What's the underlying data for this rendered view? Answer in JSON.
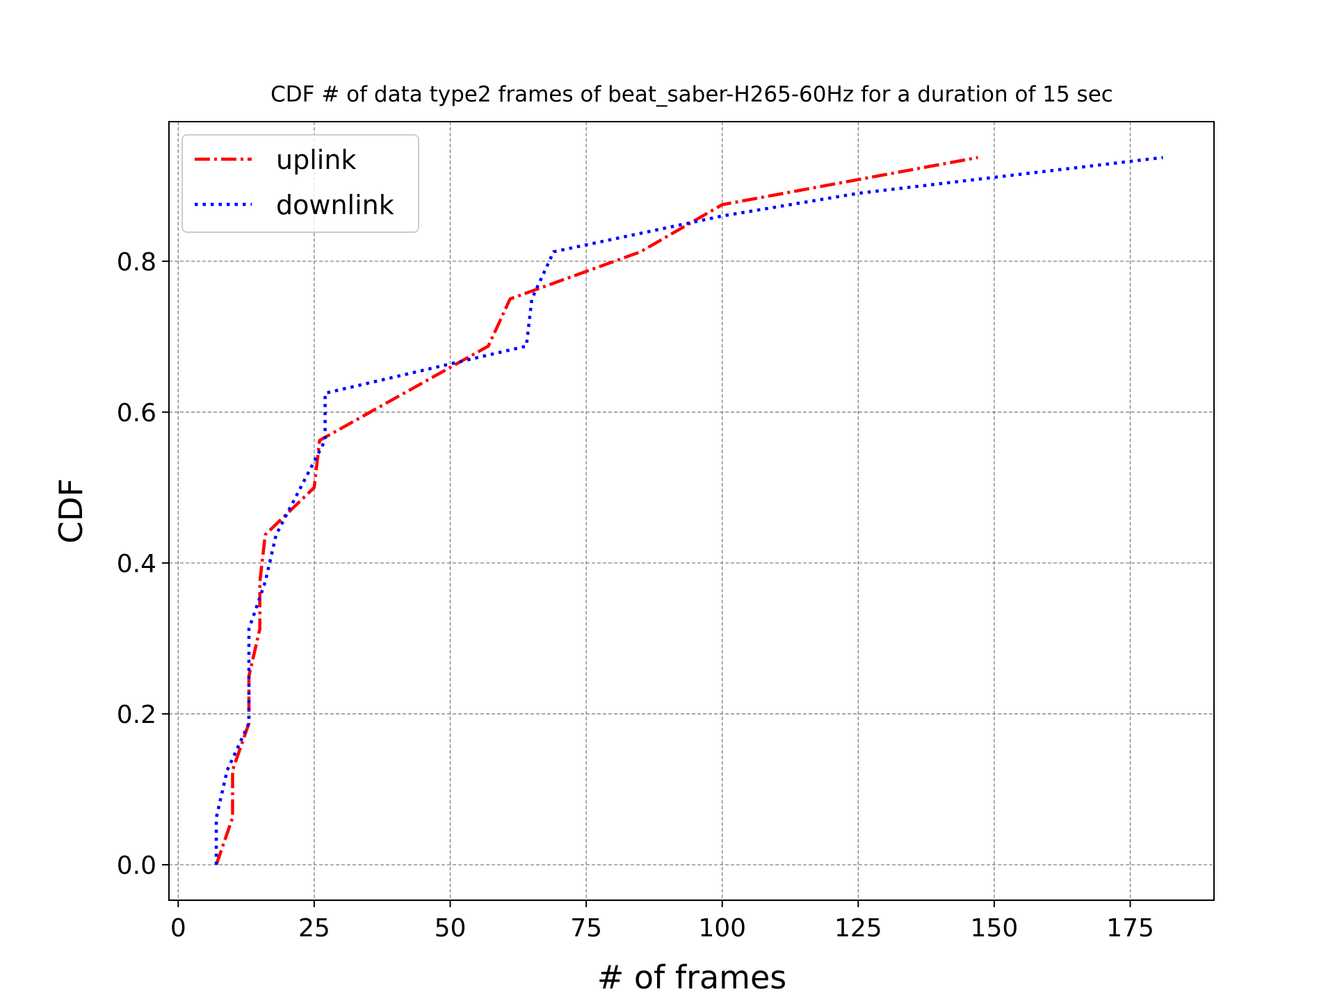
{
  "chart_data": {
    "type": "line",
    "title": "CDF # of data type2 frames of beat_saber-H265-60Hz for a duration of 15 sec",
    "xlabel": "# of frames",
    "ylabel": "CDF",
    "xlim": [
      -1.7,
      190.4
    ],
    "ylim": [
      -0.047,
      0.985
    ],
    "xticks": [
      0,
      25,
      50,
      75,
      100,
      125,
      150,
      175
    ],
    "xtick_labels": [
      "0",
      "25",
      "50",
      "75",
      "100",
      "125",
      "150",
      "175"
    ],
    "yticks": [
      0.0,
      0.2,
      0.4,
      0.6,
      0.8
    ],
    "ytick_labels": [
      "0.0",
      "0.2",
      "0.4",
      "0.6",
      "0.8"
    ],
    "grid": true,
    "legend_position": "top-left",
    "series": [
      {
        "name": "uplink",
        "color": "#ff0000",
        "style": "dashdot",
        "x": [
          7,
          10,
          10,
          13,
          13,
          15,
          15,
          16,
          16,
          25,
          26,
          26,
          57,
          61,
          85,
          100,
          147
        ],
        "y": [
          0.0,
          0.0625,
          0.125,
          0.1875,
          0.25,
          0.3125,
          0.375,
          0.4375,
          0.4375,
          0.5,
          0.5625,
          0.5625,
          0.6875,
          0.75,
          0.8125,
          0.875,
          0.9375
        ]
      },
      {
        "name": "downlink",
        "color": "#0000ff",
        "style": "dotted",
        "x": [
          7,
          7,
          9,
          13,
          13,
          16,
          18,
          27,
          27,
          64,
          65,
          69,
          100,
          125,
          181
        ],
        "y": [
          0.0,
          0.0625,
          0.125,
          0.1875,
          0.3125,
          0.375,
          0.4375,
          0.5625,
          0.625,
          0.6875,
          0.75,
          0.8125,
          0.86,
          0.89,
          0.9375
        ]
      }
    ]
  }
}
